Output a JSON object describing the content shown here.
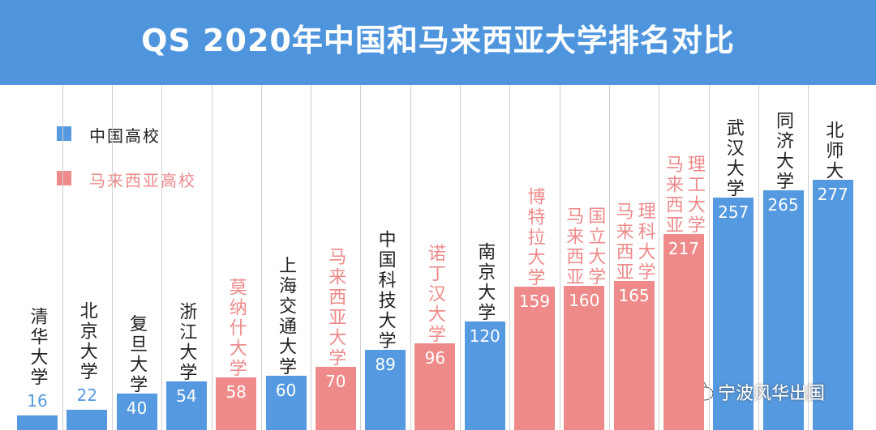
{
  "chart_data": {
    "type": "bar",
    "title": "QS 2020年中国和马来西亚大学排名对比",
    "categories": [
      "清华大学",
      "北京大学",
      "复旦大学",
      "浙江大学",
      "莫纳什大学",
      "上海交通大学",
      "马来西亚大学",
      "中国科技大学",
      "诺丁汉大学",
      "南京大学",
      "博特拉大学",
      "马来西亚国立大学",
      "马来西亚理科大学",
      "马来西亚理工大学",
      "武汉大学",
      "同济大学",
      "北师大"
    ],
    "series": [
      {
        "name": "中国高校",
        "color": "#5599e0",
        "values": [
          16,
          22,
          40,
          54,
          null,
          60,
          null,
          89,
          null,
          120,
          null,
          null,
          null,
          null,
          257,
          265,
          277
        ]
      },
      {
        "name": "马来西亚高校",
        "color": "#ee8a8a",
        "values": [
          null,
          null,
          null,
          null,
          58,
          null,
          70,
          null,
          96,
          null,
          159,
          160,
          165,
          217,
          null,
          null,
          null
        ]
      }
    ],
    "watermark": "宁波风华出国"
  }
}
